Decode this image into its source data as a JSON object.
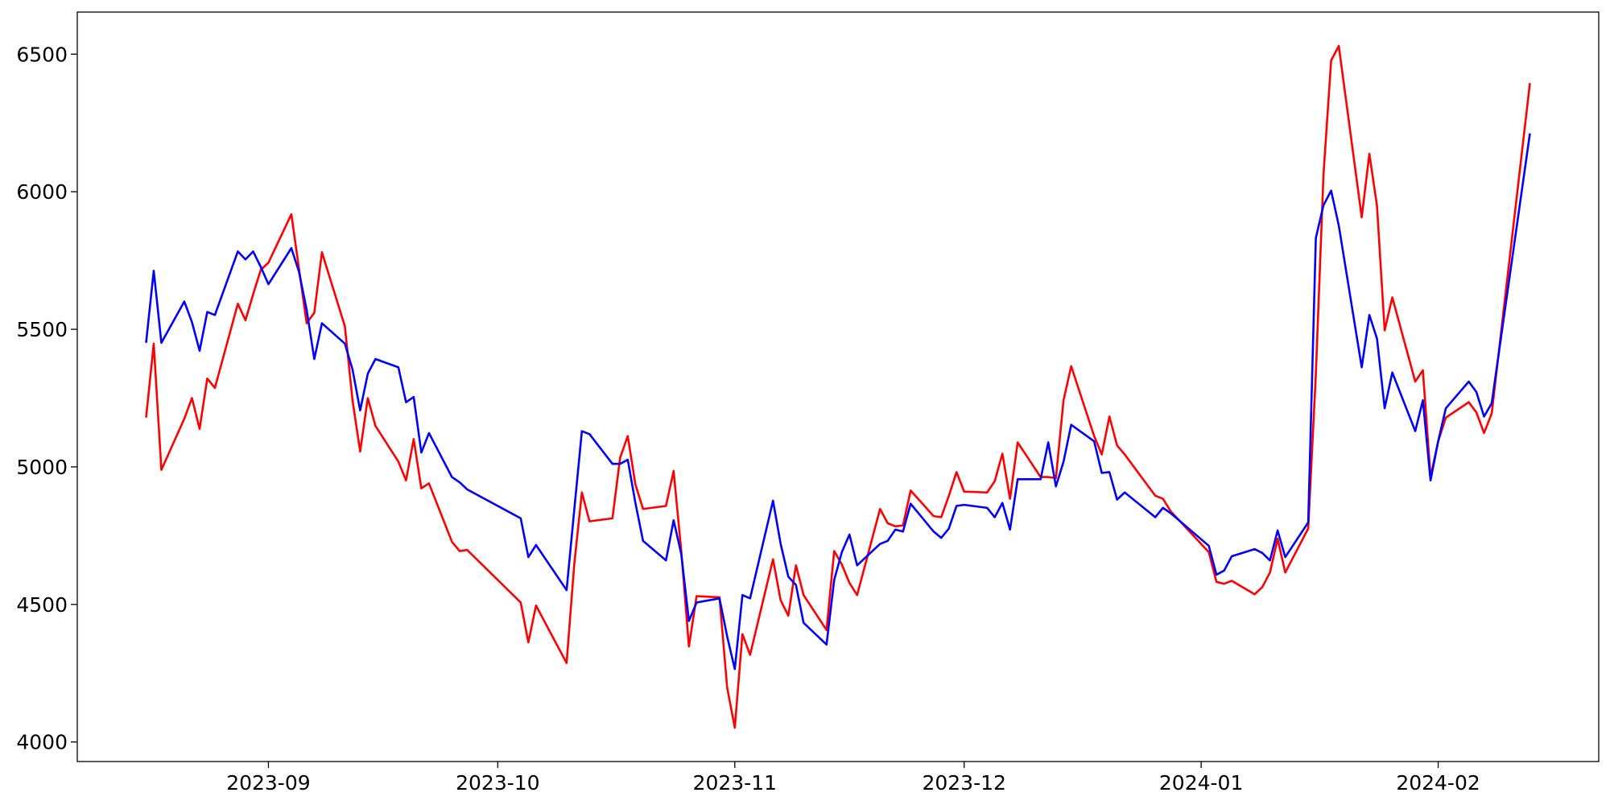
{
  "chart_data": {
    "type": "line",
    "x": [
      "2023-08-16",
      "2023-08-17",
      "2023-08-18",
      "2023-08-21",
      "2023-08-22",
      "2023-08-23",
      "2023-08-24",
      "2023-08-25",
      "2023-08-28",
      "2023-08-29",
      "2023-08-30",
      "2023-08-31",
      "2023-09-01",
      "2023-09-04",
      "2023-09-05",
      "2023-09-06",
      "2023-09-07",
      "2023-09-08",
      "2023-09-11",
      "2023-09-12",
      "2023-09-13",
      "2023-09-14",
      "2023-09-15",
      "2023-09-18",
      "2023-09-19",
      "2023-09-20",
      "2023-09-21",
      "2023-09-22",
      "2023-09-25",
      "2023-09-26",
      "2023-09-27",
      "2023-10-04",
      "2023-10-05",
      "2023-10-06",
      "2023-10-10",
      "2023-10-11",
      "2023-10-12",
      "2023-10-13",
      "2023-10-16",
      "2023-10-17",
      "2023-10-18",
      "2023-10-19",
      "2023-10-20",
      "2023-10-23",
      "2023-10-24",
      "2023-10-25",
      "2023-10-26",
      "2023-10-27",
      "2023-10-30",
      "2023-10-31",
      "2023-11-01",
      "2023-11-02",
      "2023-11-03",
      "2023-11-06",
      "2023-11-07",
      "2023-11-08",
      "2023-11-09",
      "2023-11-10",
      "2023-11-13",
      "2023-11-14",
      "2023-11-15",
      "2023-11-16",
      "2023-11-17",
      "2023-11-20",
      "2023-11-21",
      "2023-11-22",
      "2023-11-23",
      "2023-11-24",
      "2023-11-27",
      "2023-11-28",
      "2023-11-29",
      "2023-11-30",
      "2023-12-01",
      "2023-12-04",
      "2023-12-05",
      "2023-12-06",
      "2023-12-07",
      "2023-12-08",
      "2023-12-11",
      "2023-12-12",
      "2023-12-13",
      "2023-12-14",
      "2023-12-15",
      "2023-12-18",
      "2023-12-19",
      "2023-12-20",
      "2023-12-21",
      "2023-12-22",
      "2023-12-26",
      "2023-12-27",
      "2023-12-28",
      "2024-01-02",
      "2024-01-03",
      "2024-01-04",
      "2024-01-05",
      "2024-01-08",
      "2024-01-09",
      "2024-01-10",
      "2024-01-11",
      "2024-01-12",
      "2024-01-15",
      "2024-01-16",
      "2024-01-17",
      "2024-01-18",
      "2024-01-19",
      "2024-01-22",
      "2024-01-23",
      "2024-01-24",
      "2024-01-25",
      "2024-01-26",
      "2024-01-29",
      "2024-01-30",
      "2024-01-31",
      "2024-02-01",
      "2024-02-02",
      "2024-02-05",
      "2024-02-06",
      "2024-02-07",
      "2024-02-08",
      "2024-02-13"
    ],
    "series": [
      {
        "color": "#ff0000",
        "values": [
          5179,
          5448,
          4989,
          5175,
          5250,
          5138,
          5321,
          5287,
          5593,
          5533,
          5627,
          5716,
          5742,
          5918,
          5720,
          5522,
          5560,
          5780,
          5511,
          5242,
          5056,
          5250,
          5149,
          5019,
          4951,
          5101,
          4922,
          4940,
          4728,
          4694,
          4698,
          4507,
          4362,
          4496,
          4287,
          4645,
          4907,
          4802,
          4813,
          5033,
          5112,
          4936,
          4847,
          4858,
          4985,
          4694,
          4347,
          4530,
          4526,
          4198,
          4052,
          4392,
          4317,
          4664,
          4515,
          4459,
          4642,
          4534,
          4407,
          4694,
          4645,
          4578,
          4534,
          4847,
          4795,
          4784,
          4787,
          4914,
          4821,
          4817,
          4895,
          4981,
          4910,
          4907,
          4948,
          5048,
          4884,
          5089,
          4963,
          4963,
          4959,
          5242,
          5366,
          5112,
          5045,
          5183,
          5078,
          5045,
          4895,
          4884,
          4839,
          4690,
          4582,
          4575,
          4586,
          4537,
          4563,
          4616,
          4739,
          4616,
          4776,
          5336,
          6063,
          6477,
          6530,
          5907,
          6138,
          5948,
          5496,
          5616,
          5310,
          5351,
          4963,
          5093,
          5179,
          5235,
          5198,
          5123,
          5194,
          6395
        ]
      },
      {
        "color": "#0000ff",
        "values": [
          5451,
          5713,
          5451,
          5601,
          5526,
          5422,
          5563,
          5552,
          5783,
          5754,
          5783,
          5727,
          5664,
          5795,
          5709,
          5571,
          5392,
          5522,
          5448,
          5354,
          5205,
          5339,
          5392,
          5362,
          5235,
          5254,
          5052,
          5123,
          4963,
          4944,
          4918,
          4813,
          4672,
          4716,
          4552,
          4843,
          5130,
          5119,
          5011,
          5011,
          5026,
          4869,
          4731,
          4660,
          4806,
          4683,
          4440,
          4507,
          4522,
          4384,
          4265,
          4534,
          4522,
          4877,
          4720,
          4601,
          4571,
          4433,
          4354,
          4589,
          4690,
          4754,
          4642,
          4720,
          4731,
          4772,
          4765,
          4866,
          4765,
          4742,
          4776,
          4858,
          4862,
          4851,
          4817,
          4869,
          4772,
          4955,
          4955,
          5089,
          4929,
          5019,
          5153,
          5093,
          4978,
          4981,
          4881,
          4907,
          4817,
          4851,
          4832,
          4713,
          4608,
          4623,
          4675,
          4701,
          4687,
          4660,
          4769,
          4672,
          4798,
          5832,
          5951,
          6004,
          5877,
          5362,
          5552,
          5466,
          5213,
          5343,
          5130,
          5242,
          4951,
          5093,
          5213,
          5310,
          5272,
          5183,
          5231,
          6212
        ]
      }
    ],
    "xlim": [
      "2023-08-07",
      "2024-02-22"
    ],
    "xticks": [
      {
        "value": "2023-09-01",
        "label": "2023-09"
      },
      {
        "value": "2023-10-01",
        "label": "2023-10"
      },
      {
        "value": "2023-11-01",
        "label": "2023-11"
      },
      {
        "value": "2023-12-01",
        "label": "2023-12"
      },
      {
        "value": "2024-01-01",
        "label": "2024-01"
      },
      {
        "value": "2024-02-01",
        "label": "2024-02"
      }
    ],
    "ylim": [
      3929,
      6653
    ],
    "yticks": [
      4000,
      4500,
      5000,
      5500,
      6000,
      6500
    ]
  }
}
